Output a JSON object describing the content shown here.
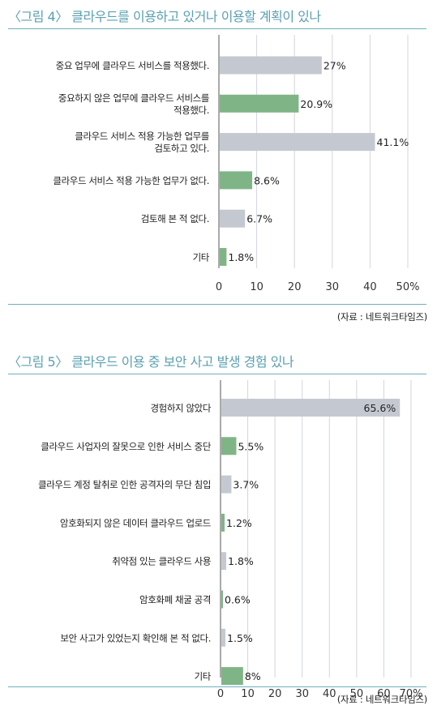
{
  "colors": {
    "gray": "#c4c9d1",
    "green": "#7fb586",
    "accent": "#5aa0b0"
  },
  "figures": [
    {
      "title": "〈그림 4〉 클라우드를 이용하고 있거나 이용할 계획이 있나",
      "source": "(자료 : 네트워크타임즈)"
    },
    {
      "title": "〈그림 5〉 클라우드 이용 중 보안 사고 발생 경험 있나",
      "source": "(자료 : 네트워크타임즈)"
    }
  ],
  "chart_data": [
    {
      "type": "bar",
      "orientation": "horizontal",
      "title": "〈그림 4〉 클라우드를 이용하고 있거나 이용할 계획이 있나",
      "categories": [
        [
          "중요 업무에 클라우드 서비스를 적용했다."
        ],
        [
          "중요하지 않은 업무에 클라우드 서비스를",
          "적용했다."
        ],
        [
          "클라우드 서비스 적용 가능한 업무를",
          "검토하고 있다."
        ],
        [
          "클라우드 서비스 적용 가능한 업무가 없다."
        ],
        [
          "검토해 본 적 없다."
        ],
        [
          "기타"
        ]
      ],
      "values": [
        27,
        20.9,
        41.1,
        8.6,
        6.7,
        1.8
      ],
      "value_labels": [
        "27%",
        "20.9%",
        "41.1%",
        "8.6%",
        "6.7%",
        "1.8%"
      ],
      "bar_colors": [
        "gray",
        "green",
        "gray",
        "green",
        "gray",
        "green"
      ],
      "xlim": [
        0,
        50
      ],
      "xticks": [
        0,
        10,
        20,
        30,
        40,
        50
      ],
      "xtick_labels": [
        "0",
        "10",
        "20",
        "30",
        "40",
        "50%"
      ],
      "grid": true
    },
    {
      "type": "bar",
      "orientation": "horizontal",
      "title": "〈그림 5〉 클라우드 이용 중 보안 사고 발생 경험 있나",
      "categories": [
        [
          "경험하지 않았다"
        ],
        [
          "클라우드 사업자의 잘못으로 인한 서비스 중단"
        ],
        [
          "클라우드 계정 탈취로 인한 공격자의 무단 침입"
        ],
        [
          "암호화되지 않은 데이터 클라우드 업로드"
        ],
        [
          "취약점 있는 클라우드 사용"
        ],
        [
          "암호화폐 채굴 공격"
        ],
        [
          "보안 사고가 있었는지 확인해 본 적 없다."
        ],
        [
          "기타"
        ]
      ],
      "values": [
        65.6,
        5.5,
        3.7,
        1.2,
        1.8,
        0.6,
        1.5,
        8
      ],
      "value_labels": [
        "65.6%",
        "5.5%",
        "3.7%",
        "1.2%",
        "1.8%",
        "0.6%",
        "1.5%",
        "8%"
      ],
      "bar_colors": [
        "gray",
        "green",
        "gray",
        "green",
        "gray",
        "green",
        "gray",
        "green"
      ],
      "label_inside": [
        true,
        false,
        false,
        false,
        false,
        false,
        false,
        false
      ],
      "xlim": [
        0,
        70
      ],
      "xticks": [
        0,
        10,
        20,
        30,
        40,
        50,
        60,
        70
      ],
      "xtick_labels": [
        "0",
        "10",
        "20",
        "30",
        "40",
        "50",
        "60",
        "70%"
      ],
      "grid": true
    }
  ]
}
